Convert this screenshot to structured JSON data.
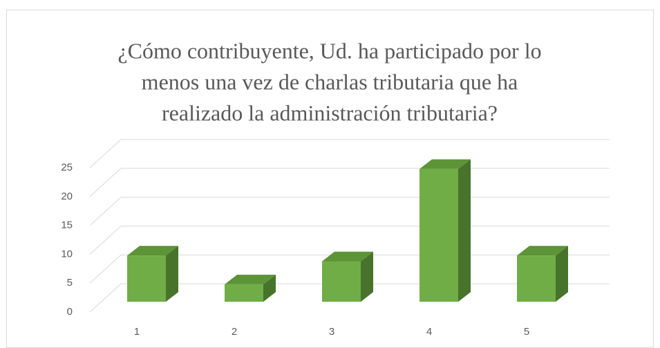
{
  "chart_data": {
    "type": "bar3d",
    "title": [
      "¿Cómo contribuyente, Ud. ha participado por lo",
      "menos una vez de charlas tributaria que ha",
      "realizado la administración tributaria?"
    ],
    "categories": [
      "1",
      "2",
      "3",
      "4",
      "5"
    ],
    "values": [
      8,
      3,
      7,
      23,
      8
    ],
    "color": "#70ad47",
    "ylim": [
      0,
      25
    ],
    "yticks": [
      0,
      5,
      10,
      15,
      20,
      25
    ],
    "grid": true
  }
}
